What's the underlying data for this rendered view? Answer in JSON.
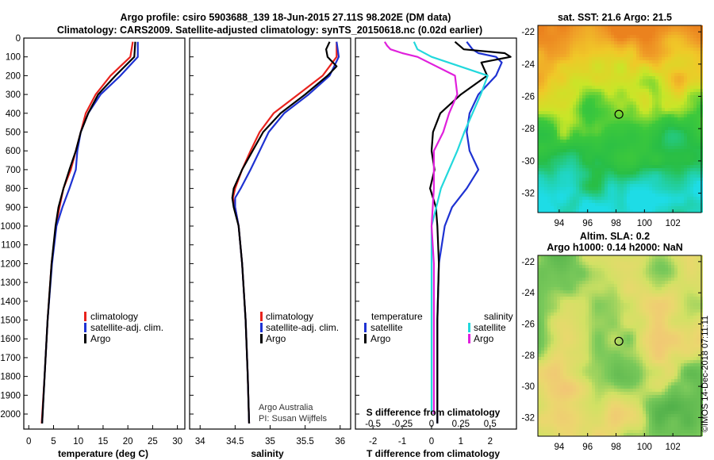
{
  "header": {
    "line1": "Argo profile: csiro 5903688_139 18-Jun-2015 27.11S 98.202E (DM data)",
    "line2": "Climatology: CARS2009. Satellite-adjusted climatology: synTS_20150618.nc (0.02d earlier)"
  },
  "colors": {
    "climatology": "#e8231d",
    "satellite": "#1e32d2",
    "argo": "#000000",
    "sat_salinity": "#22d8dc",
    "argo_salinity": "#e020dc"
  },
  "depth_axis": {
    "ticks": [
      0,
      100,
      200,
      300,
      400,
      500,
      600,
      700,
      800,
      900,
      1000,
      1100,
      1200,
      1300,
      1400,
      1500,
      1600,
      1700,
      1800,
      1900,
      2000
    ],
    "range": [
      0,
      2080
    ]
  },
  "chart_data": [
    {
      "type": "line",
      "id": "temperature",
      "xlabel": "temperature (deg C)",
      "xlim": [
        -1,
        31.5
      ],
      "xticks": [
        0,
        5,
        10,
        15,
        20,
        25,
        30
      ],
      "legend": [
        "climatology",
        "satellite-adj. clim.",
        "Argo"
      ],
      "series": [
        {
          "name": "climatology",
          "color": "#e8231d",
          "depth": [
            20,
            100,
            200,
            300,
            400,
            500,
            600,
            700,
            800,
            900,
            1000,
            1200,
            1500,
            1800,
            2050
          ],
          "values": [
            21,
            20.5,
            16.5,
            13.5,
            11.5,
            10.5,
            9.5,
            8.5,
            7,
            6.2,
            5.5,
            4.6,
            3.8,
            3.2,
            2.6
          ]
        },
        {
          "name": "satellite-adj. clim.",
          "color": "#1e32d2",
          "depth": [
            20,
            100,
            200,
            300,
            400,
            500,
            600,
            700,
            800,
            900,
            1000,
            1200,
            1500,
            1800,
            2050
          ],
          "values": [
            22,
            22,
            18.5,
            14.5,
            12,
            10.5,
            9.8,
            9.5,
            8.2,
            6.8,
            5.6,
            4.7,
            3.8,
            3.2,
            2.7
          ]
        },
        {
          "name": "Argo",
          "color": "#000000",
          "depth": [
            20,
            100,
            200,
            300,
            400,
            500,
            600,
            700,
            800,
            900,
            1000,
            1200,
            1500,
            1800,
            2050
          ],
          "values": [
            21.5,
            21.3,
            17.5,
            14,
            12,
            10.5,
            9.5,
            8.2,
            7,
            6,
            5.4,
            4.6,
            3.8,
            3.2,
            2.7
          ]
        }
      ]
    },
    {
      "type": "line",
      "id": "salinity",
      "xlabel": "salinity",
      "xlim": [
        33.85,
        36.15
      ],
      "xticks": [
        34,
        34.5,
        35,
        35.5,
        36
      ],
      "legend": [
        "climatology",
        "satellite-adj. clim.",
        "Argo"
      ],
      "series": [
        {
          "name": "climatology",
          "color": "#e8231d",
          "depth": [
            20,
            100,
            200,
            300,
            400,
            500,
            600,
            700,
            800,
            850,
            900,
            1000,
            1200,
            1500,
            1800,
            2050
          ],
          "values": [
            35.95,
            35.95,
            35.75,
            35.4,
            35.05,
            34.85,
            34.72,
            34.6,
            34.5,
            34.47,
            34.5,
            34.55,
            34.6,
            34.65,
            34.68,
            34.7
          ]
        },
        {
          "name": "satellite-adj. clim.",
          "color": "#1e32d2",
          "depth": [
            20,
            100,
            200,
            300,
            400,
            500,
            600,
            700,
            800,
            850,
            900,
            1000,
            1200,
            1500,
            1800,
            2050
          ],
          "values": [
            35.95,
            35.98,
            35.85,
            35.55,
            35.2,
            34.98,
            34.85,
            34.72,
            34.58,
            34.5,
            34.5,
            34.55,
            34.6,
            34.65,
            34.68,
            34.7
          ]
        },
        {
          "name": "Argo",
          "color": "#000000",
          "depth": [
            20,
            60,
            100,
            150,
            200,
            300,
            400,
            500,
            600,
            700,
            800,
            850,
            900,
            1000,
            1200,
            1500,
            1800,
            2050
          ],
          "values": [
            35.85,
            35.8,
            35.82,
            35.95,
            35.82,
            35.5,
            35.15,
            34.9,
            34.75,
            34.6,
            34.48,
            34.46,
            34.48,
            34.55,
            34.6,
            34.65,
            34.68,
            34.7
          ]
        }
      ]
    },
    {
      "type": "line",
      "id": "differences",
      "xlabel": "T difference from climatology",
      "xlabel_top": "S difference from climatology",
      "xlim": [
        -2.6,
        2.9
      ],
      "xticks": [
        -2,
        -1,
        0,
        1,
        2
      ],
      "top_xticks": [
        "-0.5",
        "-0.25",
        "0",
        "0.25",
        "0.5"
      ],
      "legend_temperature_title": "temperature",
      "legend_salinity_title": "salinity",
      "legend_temperature": [
        "satellite",
        "Argo"
      ],
      "legend_salinity": [
        "satellite",
        "Argo"
      ],
      "series": [
        {
          "name": "T satellite",
          "color": "#1e32d2",
          "depth": [
            20,
            60,
            80,
            100,
            130,
            200,
            300,
            400,
            500,
            600,
            700,
            800,
            900,
            1000,
            1200,
            1500,
            2050
          ],
          "values": [
            1.2,
            1.4,
            1.6,
            2.2,
            2.4,
            2.2,
            1.6,
            1.3,
            1.2,
            1.3,
            1.6,
            1.2,
            0.7,
            0.45,
            0.25,
            0.2,
            0.2
          ]
        },
        {
          "name": "T Argo",
          "color": "#000000",
          "depth": [
            20,
            60,
            80,
            100,
            130,
            200,
            300,
            400,
            500,
            600,
            700,
            800,
            900,
            1000,
            1200,
            1500,
            2050
          ],
          "values": [
            0.8,
            1.1,
            2.5,
            2.7,
            1.7,
            1.9,
            1.0,
            0.3,
            0.05,
            0.0,
            0.1,
            -0.05,
            0.15,
            0.2,
            0.25,
            0.2,
            0.2
          ]
        },
        {
          "name": "S satellite",
          "color": "#22d8dc",
          "depth": [
            20,
            60,
            100,
            200,
            300,
            400,
            500,
            600,
            800,
            1000,
            1200,
            1500,
            1800,
            2000
          ],
          "values": [
            -0.15,
            -0.12,
            0.0,
            0.48,
            0.42,
            0.35,
            0.28,
            0.22,
            0.08,
            0.0,
            0.0,
            0.0,
            0.0,
            0.0
          ]
        },
        {
          "name": "S Argo",
          "color": "#e020dc",
          "depth": [
            20,
            40,
            60,
            80,
            100,
            200,
            300,
            400,
            500,
            600,
            800,
            1000,
            1200,
            1500,
            1800,
            2000
          ],
          "values": [
            -0.4,
            -0.38,
            -0.35,
            -0.25,
            -0.12,
            0.2,
            0.22,
            0.15,
            0.1,
            0.02,
            0.02,
            0.0,
            0.02,
            0.02,
            0.02,
            0.02
          ]
        }
      ]
    },
    {
      "type": "heatmap",
      "id": "sst-map",
      "title": "sat. SST: 21.6 Argo: 21.5",
      "xticks": [
        94,
        96,
        98,
        100,
        102
      ],
      "yticks": [
        -22,
        -24,
        -26,
        -28,
        -30,
        -32
      ],
      "xlim": [
        92.5,
        104
      ],
      "ylim": [
        -33.2,
        -21.6
      ],
      "marker": {
        "lon": 98.202,
        "lat": -27.11
      }
    },
    {
      "type": "heatmap",
      "id": "sla-map",
      "title": "Altim. SLA: 0.2",
      "subtitle": "Argo h1000: 0.14 h2000: NaN",
      "xticks": [
        94,
        96,
        98,
        100,
        102
      ],
      "yticks": [
        -22,
        -24,
        -26,
        -28,
        -30,
        -32
      ],
      "xlim": [
        92.5,
        104
      ],
      "ylim": [
        -33.2,
        -21.6
      ],
      "marker": {
        "lon": 98.202,
        "lat": -27.11
      }
    }
  ],
  "footer": {
    "credit1": "Argo Australia",
    "credit2": "PI: Susan Wijffels",
    "imos": "©IMOS 14-Dec-2018 07:11:11"
  }
}
